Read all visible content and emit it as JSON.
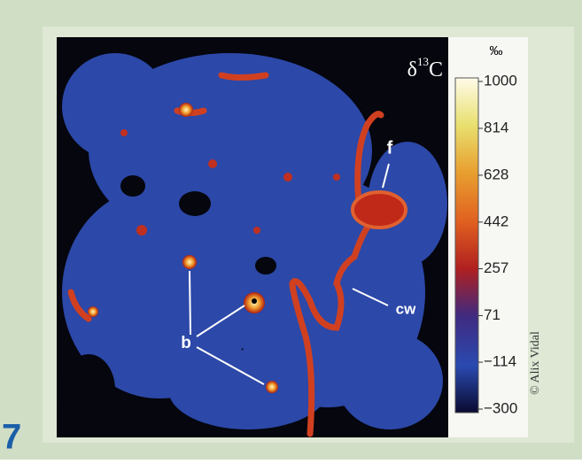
{
  "figure": {
    "panel_number": "7",
    "label": {
      "symbol": "δ",
      "isotope": "13",
      "element": "C"
    },
    "colorbar": {
      "unit": "‰",
      "ticks": [
        1000,
        814,
        628,
        442,
        257,
        71,
        {
          "value": -114,
          "label": "−114"
        },
        {
          "value": -300,
          "label": "−300"
        }
      ]
    },
    "annotations": [
      "f",
      "cw",
      "b"
    ],
    "credit": "© Alix Vidal"
  }
}
